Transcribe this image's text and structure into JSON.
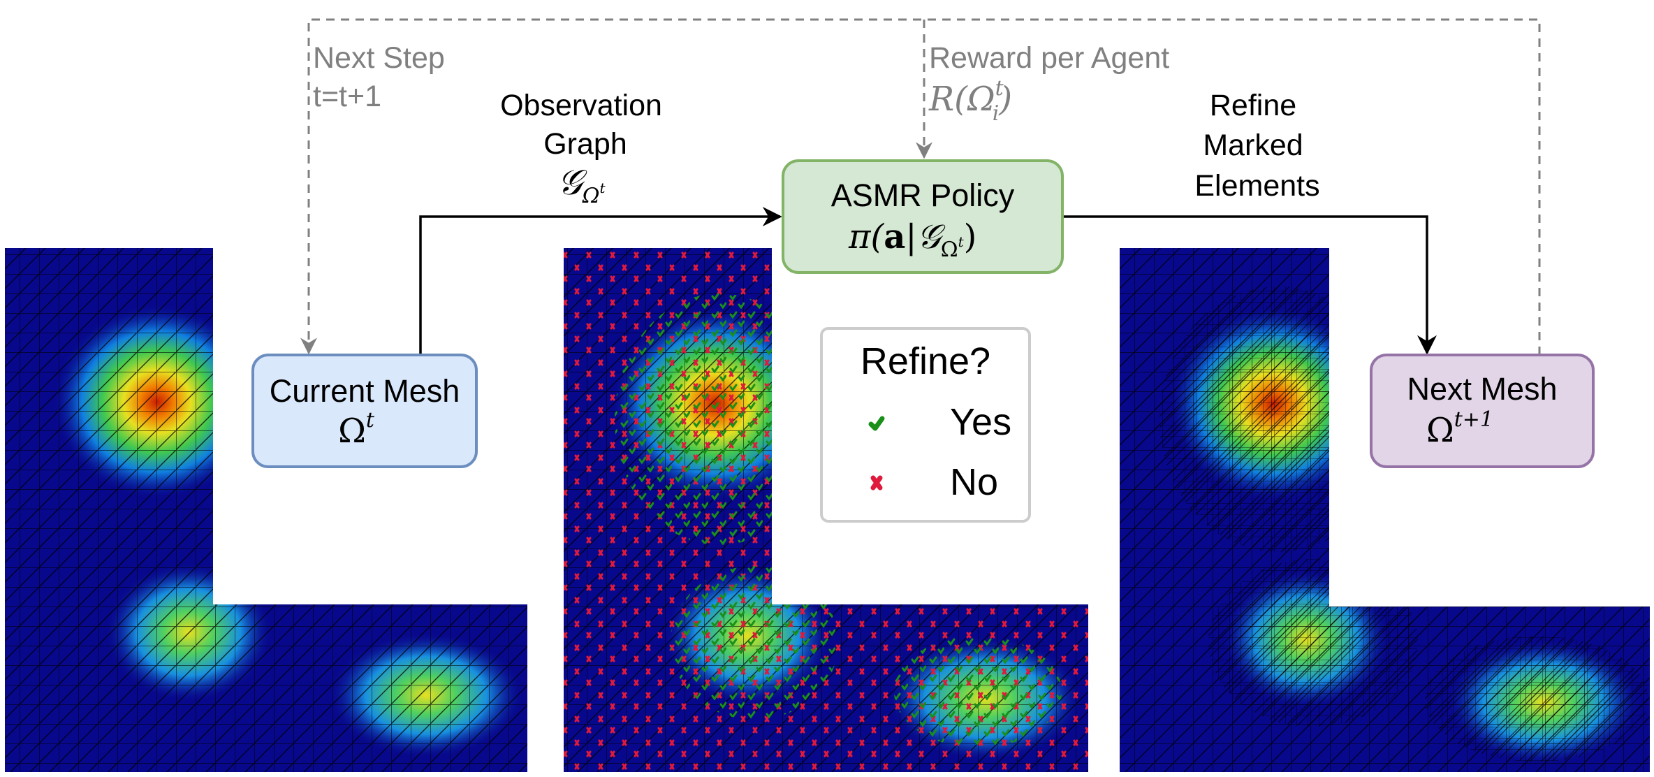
{
  "loop": {
    "next_step_line1": "Next Step",
    "next_step_line2": "t=t+1",
    "reward_line1": "Reward per Agent",
    "reward_math": "R(Ω",
    "reward_sub": "i",
    "reward_sup": "t",
    "reward_close": ")"
  },
  "edges": {
    "observation_line1": "Observation",
    "observation_line2": "Graph",
    "observation_math": "𝒢",
    "observation_sub": "Ω",
    "observation_subsup": "t",
    "refine_line1": "Refine",
    "refine_line2": "Marked",
    "refine_line3": "Elements"
  },
  "nodes": {
    "current_mesh_label": "Current Mesh",
    "current_mesh_math": "Ω",
    "current_mesh_sup": "t",
    "policy_label": "ASMR Policy",
    "policy_math_pre": "π(",
    "policy_math_bold": "a",
    "policy_math_mid": "|𝒢",
    "policy_math_sub": "Ω",
    "policy_math_subsup": "t",
    "policy_math_close": ")",
    "next_mesh_label": "Next Mesh",
    "next_mesh_math": "Ω",
    "next_mesh_sup": "t+1"
  },
  "legend": {
    "title": "Refine?",
    "yes_label": "Yes",
    "no_label": "No"
  },
  "colors": {
    "current_mesh_fill": "#dae8fc",
    "current_mesh_stroke": "#6c8ebf",
    "policy_fill": "#d5e8d4",
    "policy_stroke": "#82b366",
    "next_mesh_fill": "#e1d5e7",
    "next_mesh_stroke": "#9673a6",
    "loop_arrow": "#808080",
    "yes_mark": "#1a8f1a",
    "no_mark": "#e01a3c",
    "field_background": "#08088c"
  }
}
